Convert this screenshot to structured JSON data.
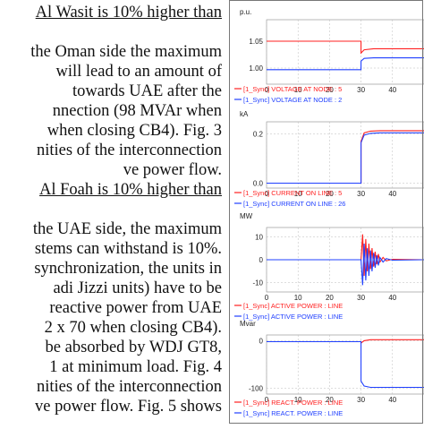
{
  "page": {
    "paragraph_lines": [
      {
        "text": "Al Wasit is 10% higher than",
        "underline": true,
        "justify": false
      },
      {
        "text": "",
        "underline": false,
        "justify": false
      },
      {
        "text": "the Oman side the maximum",
        "underline": false,
        "justify": false
      },
      {
        "text": "will lead to an amount of",
        "underline": false,
        "justify": false
      },
      {
        "text": "towards   UAE   after   the",
        "underline": false,
        "justify": false
      },
      {
        "text": "nnection (98 MVAr when",
        "underline": false,
        "justify": false
      },
      {
        "text": "when closing CB4). Fig. 3",
        "underline": false,
        "justify": false
      },
      {
        "text": "nities of the interconnection",
        "underline": false,
        "justify": false
      },
      {
        "text": "ve power flow.",
        "underline": false,
        "justify": false
      },
      {
        "text": "Al Foah is 10% higher than",
        "underline": true,
        "justify": false
      },
      {
        "text": "",
        "underline": false,
        "justify": false
      },
      {
        "text": "the UAE side, the maximum",
        "underline": false,
        "justify": false
      },
      {
        "text": "stems can withstand is 10%.",
        "underline": false,
        "justify": false
      },
      {
        "text": "synchronization, the units in",
        "underline": false,
        "justify": false
      },
      {
        "text": "adi Jizzi units) have to be",
        "underline": false,
        "justify": false
      },
      {
        "text": "reactive power from UAE",
        "underline": false,
        "justify": false
      },
      {
        "text": "2 x 70 when closing CB4).",
        "underline": false,
        "justify": false
      },
      {
        "text": "be absorbed by WDJ GT8,",
        "underline": false,
        "justify": false
      },
      {
        "text": "1 at minimum load. Fig. 4",
        "underline": false,
        "justify": false
      },
      {
        "text": "nities of the interconnection",
        "underline": false,
        "justify": false
      },
      {
        "text": "ve power flow. Fig. 5 shows",
        "underline": false,
        "justify": false
      }
    ]
  },
  "chart_data": [
    {
      "type": "line",
      "ylabel": "p.u.",
      "xlim": [
        0,
        50
      ],
      "ylim": [
        0.97,
        1.09
      ],
      "yticks": [
        1.0,
        1.05
      ],
      "ytick_labels": [
        "1.00",
        "1.05"
      ],
      "xticks": [
        0,
        10,
        20,
        30,
        40
      ],
      "xtick_labels": [
        "0",
        "10",
        "20",
        "30",
        "40"
      ],
      "series": [
        {
          "name": "[1_Sync]  VOLTAGE AT NODE : 5",
          "color": "#ff2020",
          "x": [
            0,
            30,
            30,
            31,
            34,
            38,
            50
          ],
          "y": [
            1.05,
            1.05,
            1.028,
            1.034,
            1.036,
            1.036,
            1.036
          ]
        },
        {
          "name": "[1_Sync]  VOLTAGE AT NODE : 2",
          "color": "#2040ff",
          "x": [
            0,
            30,
            30,
            31,
            34,
            38,
            50
          ],
          "y": [
            0.997,
            0.997,
            1.013,
            1.018,
            1.019,
            1.019,
            1.019
          ]
        }
      ]
    },
    {
      "type": "line",
      "ylabel": "kA",
      "xlim": [
        0,
        50
      ],
      "ylim": [
        -0.02,
        0.25
      ],
      "yticks": [
        0.0,
        0.2
      ],
      "ytick_labels": [
        "0.0",
        "0.2"
      ],
      "xticks": [
        0,
        10,
        20,
        30,
        40
      ],
      "xtick_labels": [
        "0",
        "10",
        "20",
        "30",
        "40"
      ],
      "series": [
        {
          "name": "[1_Sync]  CURRENT ON LINE : 5",
          "color": "#ff2020",
          "x": [
            0,
            30,
            30,
            31,
            33,
            36,
            50
          ],
          "y": [
            0.0,
            0.0,
            0.17,
            0.205,
            0.212,
            0.214,
            0.214
          ]
        },
        {
          "name": "[1_Sync]  CURRENT ON LINE : 26",
          "color": "#2040ff",
          "x": [
            0,
            30,
            30,
            31,
            33,
            36,
            50
          ],
          "y": [
            0.0,
            0.0,
            0.165,
            0.196,
            0.203,
            0.205,
            0.205
          ]
        }
      ]
    },
    {
      "type": "line",
      "ylabel": "MW",
      "xlim": [
        0,
        50
      ],
      "ylim": [
        -14,
        14
      ],
      "yticks": [
        -10,
        0,
        10
      ],
      "ytick_labels": [
        "-10",
        "0",
        "10"
      ],
      "xticks": [
        0,
        10,
        20,
        30,
        40
      ],
      "xtick_labels": [
        "0",
        "10",
        "20",
        "30",
        "40"
      ],
      "series": [
        {
          "name": "[1_Sync]  ACTIVE POWER : LINE",
          "color": "#ff2020",
          "x": [
            0,
            30,
            30.5,
            31,
            31.5,
            32,
            32.5,
            33,
            33.5,
            34,
            34.5,
            35,
            35.5,
            36,
            37,
            38,
            40,
            50
          ],
          "y": [
            0,
            0,
            11,
            -7,
            9,
            -5,
            7,
            -4,
            5,
            -3,
            3.5,
            -2,
            2.5,
            -1,
            1,
            -0.5,
            0.2,
            0
          ]
        },
        {
          "name": "[1_Sync]  ACTIVE POWER : LINE",
          "color": "#2040ff",
          "x": [
            0,
            30,
            30.5,
            31,
            31.5,
            32,
            32.5,
            33,
            33.5,
            34,
            34.5,
            35,
            35.5,
            36,
            37,
            38,
            40,
            50
          ],
          "y": [
            0,
            0,
            -11,
            7,
            -9,
            5,
            -7,
            4,
            -5,
            3,
            -3.5,
            2,
            -2.5,
            1,
            -1,
            0.5,
            -0.2,
            0
          ]
        }
      ]
    },
    {
      "type": "line",
      "ylabel": "Mvar",
      "xlim": [
        0,
        50
      ],
      "ylim": [
        -112,
        12
      ],
      "yticks": [
        -100,
        0
      ],
      "ytick_labels": [
        "-100",
        "0"
      ],
      "xticks": [
        0,
        10,
        20,
        30,
        40
      ],
      "xtick_labels": [
        "0",
        "10",
        "20",
        "30",
        "40"
      ],
      "series": [
        {
          "name": "[1_Sync]  REACT. POWER : LINE",
          "color": "#ff2020",
          "x": [
            0,
            30,
            30,
            31,
            33,
            36,
            50
          ],
          "y": [
            -2,
            -2,
            -5,
            0,
            2,
            2,
            2
          ]
        },
        {
          "name": "[1_Sync]  REACT. POWER : LINE",
          "color": "#2040ff",
          "x": [
            0,
            30,
            30,
            31,
            33,
            36,
            50
          ],
          "y": [
            -2,
            -2,
            -85,
            -95,
            -98,
            -98,
            -98
          ]
        }
      ]
    }
  ]
}
